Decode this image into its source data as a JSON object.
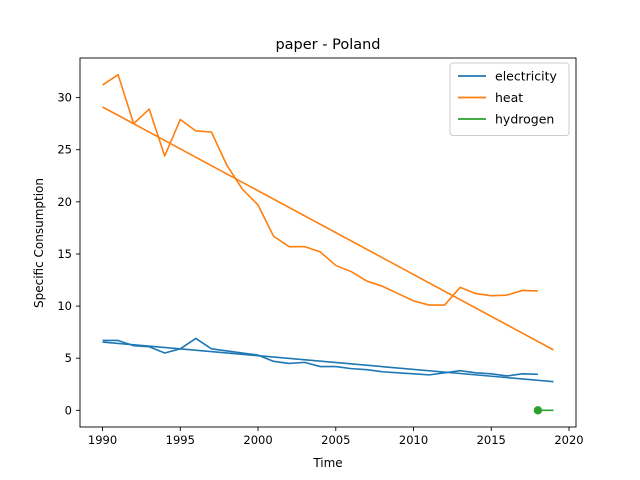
{
  "chart_data": {
    "type": "line",
    "title": "paper - Poland",
    "xlabel": "Time",
    "ylabel": "Specific Consumption",
    "xlim": [
      1988.55,
      2020.45
    ],
    "ylim": [
      -1.6,
      33.8
    ],
    "xticks": [
      1990,
      1995,
      2000,
      2005,
      2010,
      2015,
      2020
    ],
    "yticks": [
      0,
      5,
      10,
      15,
      20,
      25,
      30
    ],
    "grid": false,
    "legend_position": "top-right",
    "series": [
      {
        "name": "electricity",
        "color": "#1f77b4",
        "x": [
          1990,
          1991,
          1992,
          1993,
          1994,
          1995,
          1996,
          1997,
          1998,
          1999,
          2000,
          2001,
          2002,
          2003,
          2004,
          2005,
          2006,
          2007,
          2008,
          2009,
          2010,
          2011,
          2012,
          2013,
          2014,
          2015,
          2016,
          2017,
          2018
        ],
        "y": [
          6.7,
          6.7,
          6.2,
          6.1,
          5.5,
          5.9,
          6.9,
          5.9,
          5.7,
          5.5,
          5.3,
          4.7,
          4.5,
          4.6,
          4.2,
          4.2,
          4.0,
          3.9,
          3.7,
          3.6,
          3.5,
          3.4,
          3.6,
          3.8,
          3.6,
          3.5,
          3.3,
          3.5,
          3.45
        ]
      },
      {
        "name": "",
        "color": "#1f77b4",
        "x": [
          1990,
          2019
        ],
        "y": [
          6.55,
          2.75
        ]
      },
      {
        "name": "heat",
        "color": "#ff7f0e",
        "x": [
          1990,
          1991,
          1992,
          1993,
          1994,
          1995,
          1996,
          1997,
          1998,
          1999,
          2000,
          2001,
          2002,
          2003,
          2004,
          2005,
          2006,
          2007,
          2008,
          2009,
          2010,
          2011,
          2012,
          2013,
          2014,
          2015,
          2016,
          2017,
          2018
        ],
        "y": [
          31.2,
          32.2,
          27.5,
          28.9,
          24.4,
          27.9,
          26.8,
          26.7,
          23.5,
          21.2,
          19.7,
          16.7,
          15.7,
          15.7,
          15.2,
          13.9,
          13.3,
          12.4,
          11.9,
          11.2,
          10.5,
          10.1,
          10.1,
          11.8,
          11.2,
          11.0,
          11.05,
          11.5,
          11.45
        ]
      },
      {
        "name": "",
        "color": "#ff7f0e",
        "x": [
          1990,
          2019
        ],
        "y": [
          29.1,
          5.8
        ]
      },
      {
        "name": "hydrogen",
        "color": "#2ca02c",
        "x": [
          2018,
          2019
        ],
        "y": [
          0.0,
          0.0
        ],
        "marker_at_first": true
      }
    ]
  }
}
